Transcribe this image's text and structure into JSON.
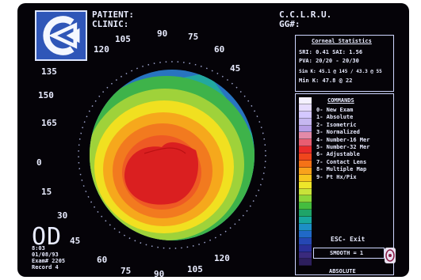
{
  "header": {
    "patient_label": "PATIENT:",
    "clinic_label": "CLINIC:",
    "clinic_name": "C.C.L.R.U.",
    "clinic_code": "GG#:"
  },
  "stats": {
    "title": "Corneal Statistics",
    "line1": "SRI: 0.41   SAI: 1.56",
    "line2": "PVA: 20/20 - 20/30",
    "line3": "Sim K: 45.1 @ 145 / 43.3 @ 55",
    "line4": "Min K:  47.8 @ 22"
  },
  "commands": {
    "title": "COMMANDS",
    "items": [
      "0- New Exam",
      "1- Absolute",
      "2- Isometric",
      "3- Normalized",
      "4- Number-16 Mer",
      "5- Number-32 Mer",
      "6- Adjustable",
      "7- Contact Lens",
      "8- Multiple Map",
      "9- Pt Hx/Pix"
    ],
    "esc": "ESC- Exit",
    "smooth": "SMOOTH = 1",
    "absolute": "ABSOLUTE"
  },
  "scale_colors": [
    "#f4f1ff",
    "#e6dcff",
    "#d4c8ff",
    "#c6b7f0",
    "#b79ee6",
    "#e38aa8",
    "#e85d72",
    "#ea2b2b",
    "#f0461d",
    "#f57217",
    "#f9a21c",
    "#f7c61e",
    "#eee62a",
    "#c8e33a",
    "#8ad63a",
    "#44bd3f",
    "#1fa468",
    "#18a79f",
    "#1d8fc6",
    "#2069c7",
    "#2547b3",
    "#2a2f98",
    "#3a2a7d",
    "#2d1f5d"
  ],
  "eye": "OD",
  "exam": {
    "line1": "8:03",
    "line2": "01/08/93",
    "line3": "Exam# 2205",
    "line4": "Record 4"
  },
  "axis_labels": [
    "90",
    "75",
    "60",
    "45",
    "30",
    "15",
    "0",
    "165",
    "150",
    "135",
    "120",
    "105",
    "60",
    "75",
    "90",
    "105",
    "120",
    "45"
  ],
  "colors": {
    "background": "#050308",
    "text": "#e9ecff",
    "logo_blue": "#2f56b8",
    "map_red": "#d9191c",
    "map_orange": "#f15a22",
    "map_yellow": "#f5d31c",
    "map_green": "#3db24a",
    "map_blue": "#2978c2"
  }
}
